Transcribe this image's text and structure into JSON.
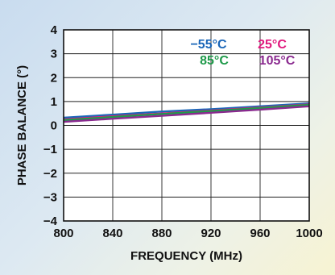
{
  "chart_data": {
    "type": "line",
    "title": "",
    "xlabel": "FREQUENCY (MHz)",
    "ylabel": "PHASE BALANCE (°)",
    "xlim": [
      800,
      1000
    ],
    "ylim": [
      -4,
      4
    ],
    "x_ticks": [
      "800",
      "840",
      "880",
      "920",
      "960",
      "1000"
    ],
    "y_ticks": [
      "4",
      "3",
      "2",
      "1",
      "0",
      "−1",
      "−2",
      "−3",
      "−4"
    ],
    "grid": true,
    "legend_position": "top-right",
    "x": [
      800,
      840,
      880,
      920,
      960,
      1000
    ],
    "series": [
      {
        "name": "−55°C",
        "color": "#1a66b8",
        "values": [
          0.32,
          0.45,
          0.58,
          0.68,
          0.8,
          0.92
        ]
      },
      {
        "name": "25°C",
        "color": "#e0197d",
        "values": [
          0.25,
          0.38,
          0.5,
          0.62,
          0.75,
          0.88
        ]
      },
      {
        "name": "85°C",
        "color": "#1f9a4a",
        "values": [
          0.22,
          0.35,
          0.48,
          0.6,
          0.73,
          0.86
        ]
      },
      {
        "name": "105°C",
        "color": "#8a2a8f",
        "values": [
          0.15,
          0.28,
          0.4,
          0.53,
          0.66,
          0.8
        ]
      }
    ]
  }
}
